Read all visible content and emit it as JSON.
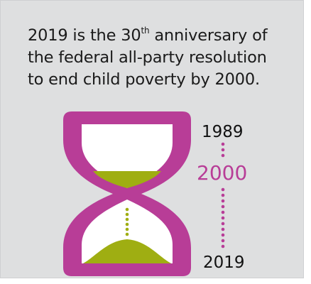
{
  "headline": {
    "line1_before_sup": "2019 is the 30",
    "line1_sup": "th",
    "line1_after_sup": " anniversary of",
    "line2": "the federal all-party resolution",
    "line3": "to end child poverty by 2000."
  },
  "timeline": {
    "start_year": "1989",
    "target_year": "2000",
    "end_year": "2019"
  },
  "colors": {
    "background": "#dedfe0",
    "hourglass_frame": "#b83d97",
    "sand": "#9fae12",
    "glass": "#ffffff",
    "target_year": "#b83d97",
    "text": "#1a1a1a"
  },
  "icons": {
    "hourglass": "hourglass-icon",
    "timeline": "dotted-timeline"
  }
}
